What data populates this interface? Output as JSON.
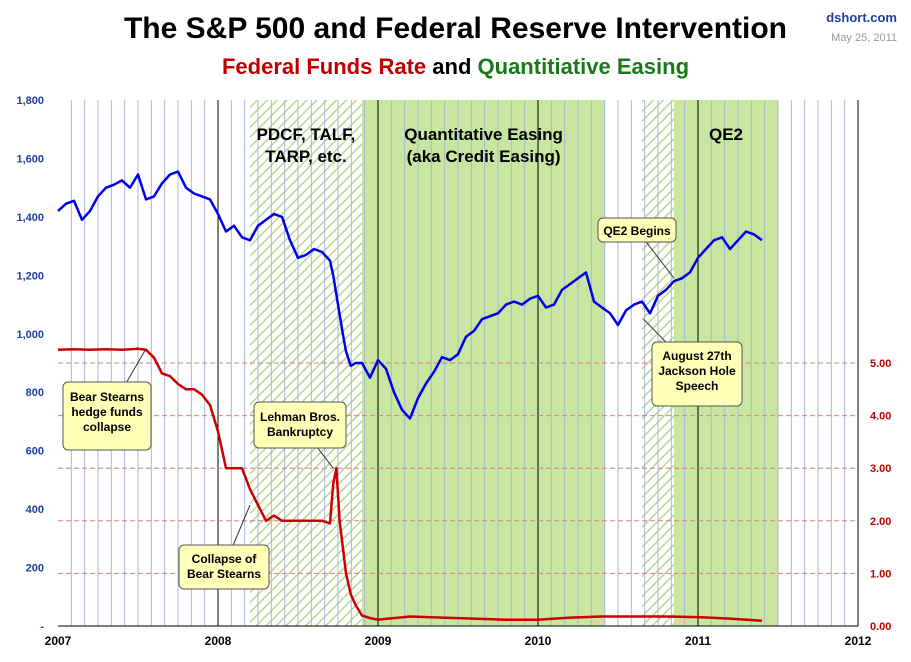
{
  "header": {
    "title": "The S&P 500 and Federal Reserve Intervention",
    "subtitle_part1": "Federal Funds Rate",
    "subtitle_part2": "and",
    "subtitle_part3": "Quantitiative Easing",
    "source": "dshort.com",
    "date": "May 25, 2011"
  },
  "colors": {
    "sp500_line": "#0000ee",
    "fed_funds_line": "#cc0000",
    "qe_fill": "#c8e6a0",
    "facility_hatch": "#b8d890",
    "left_axis_text": "#1f3f9f",
    "right_axis_text": "#c00000",
    "callout_fill": "#ffffb8"
  },
  "chart_data": {
    "type": "line",
    "x_axis": {
      "range": [
        2007.0,
        2012.0
      ],
      "tick_labels": [
        "2007",
        "2008",
        "2009",
        "2010",
        "2011",
        "2012"
      ]
    },
    "y_left": {
      "range": [
        0,
        1800
      ],
      "tick_labels": [
        "-",
        "200",
        "400",
        "600",
        "800",
        "1,000",
        "1,200",
        "1,400",
        "1,600",
        "1,800"
      ]
    },
    "y_right": {
      "range": [
        0,
        10
      ],
      "tick_labels": [
        "0.00",
        "1.00",
        "2.00",
        "3.00",
        "4.00",
        "5.00"
      ]
    },
    "grid": "vertical monthly gridlines; dashed horizontal lines on right-axis ticks",
    "shaded_periods": [
      {
        "label": "PDCF, TALF,\nTARP, etc.",
        "start": 2008.2,
        "end": 2008.9,
        "style": "hatched"
      },
      {
        "label": "Quantitative  Easing\n(aka Credit Easing)",
        "start": 2008.9,
        "end": 2010.42,
        "style": "solid"
      },
      {
        "label": "",
        "start": 2010.65,
        "end": 2010.85,
        "style": "hatched"
      },
      {
        "label": "QE2",
        "start": 2010.85,
        "end": 2011.5,
        "style": "solid"
      }
    ],
    "series": [
      {
        "axis": "left",
        "x": [
          2007.0,
          2007.05,
          2007.1,
          2007.15,
          2007.2,
          2007.25,
          2007.3,
          2007.35,
          2007.4,
          2007.45,
          2007.5,
          2007.55,
          2007.6,
          2007.65,
          2007.7,
          2007.75,
          2007.8,
          2007.85,
          2007.9,
          2007.95,
          2008.0,
          2008.05,
          2008.1,
          2008.15,
          2008.2,
          2008.25,
          2008.3,
          2008.35,
          2008.4,
          2008.45,
          2008.5,
          2008.55,
          2008.6,
          2008.65,
          2008.7,
          2008.72,
          2008.75,
          2008.78,
          2008.8,
          2008.83,
          2008.86,
          2008.9,
          2008.95,
          2009.0,
          2009.05,
          2009.1,
          2009.15,
          2009.2,
          2009.25,
          2009.3,
          2009.35,
          2009.4,
          2009.45,
          2009.5,
          2009.55,
          2009.6,
          2009.65,
          2009.7,
          2009.75,
          2009.8,
          2009.85,
          2009.9,
          2009.95,
          2010.0,
          2010.05,
          2010.1,
          2010.15,
          2010.2,
          2010.25,
          2010.3,
          2010.35,
          2010.4,
          2010.45,
          2010.5,
          2010.55,
          2010.6,
          2010.65,
          2010.7,
          2010.75,
          2010.8,
          2010.85,
          2010.9,
          2010.95,
          2011.0,
          2011.05,
          2011.1,
          2011.15,
          2011.2,
          2011.25,
          2011.3,
          2011.35,
          2011.4
        ],
        "values": [
          1420,
          1445,
          1455,
          1390,
          1420,
          1470,
          1500,
          1510,
          1525,
          1500,
          1545,
          1460,
          1470,
          1515,
          1545,
          1555,
          1500,
          1480,
          1470,
          1460,
          1410,
          1350,
          1370,
          1330,
          1320,
          1370,
          1390,
          1410,
          1400,
          1320,
          1260,
          1270,
          1290,
          1280,
          1250,
          1200,
          1100,
          1000,
          940,
          890,
          900,
          900,
          850,
          910,
          880,
          800,
          740,
          710,
          780,
          830,
          870,
          920,
          910,
          930,
          990,
          1010,
          1050,
          1060,
          1070,
          1100,
          1110,
          1100,
          1120,
          1130,
          1090,
          1100,
          1150,
          1170,
          1190,
          1210,
          1110,
          1090,
          1070,
          1030,
          1080,
          1100,
          1110,
          1070,
          1130,
          1150,
          1180,
          1190,
          1210,
          1260,
          1290,
          1320,
          1330,
          1290,
          1320,
          1350,
          1340,
          1320
        ]
      },
      {
        "axis": "right",
        "x": [
          2007.0,
          2007.1,
          2007.2,
          2007.3,
          2007.4,
          2007.5,
          2007.55,
          2007.6,
          2007.65,
          2007.7,
          2007.75,
          2007.8,
          2007.85,
          2007.9,
          2007.95,
          2008.0,
          2008.05,
          2008.1,
          2008.15,
          2008.2,
          2008.25,
          2008.3,
          2008.35,
          2008.4,
          2008.45,
          2008.5,
          2008.55,
          2008.6,
          2008.65,
          2008.7,
          2008.72,
          2008.74,
          2008.76,
          2008.78,
          2008.8,
          2008.83,
          2008.86,
          2008.9,
          2008.95,
          2009.0,
          2009.2,
          2009.4,
          2009.6,
          2009.8,
          2010.0,
          2010.2,
          2010.4,
          2010.6,
          2010.8,
          2011.0,
          2011.2,
          2011.4
        ],
        "values": [
          5.25,
          5.26,
          5.25,
          5.26,
          5.25,
          5.27,
          5.25,
          5.1,
          4.8,
          4.75,
          4.6,
          4.5,
          4.5,
          4.4,
          4.2,
          3.7,
          3.0,
          3.0,
          3.0,
          2.6,
          2.3,
          2.0,
          2.1,
          2.0,
          2.0,
          2.0,
          2.0,
          2.0,
          2.0,
          1.95,
          2.7,
          3.0,
          2.0,
          1.5,
          1.0,
          0.6,
          0.4,
          0.2,
          0.15,
          0.12,
          0.18,
          0.16,
          0.14,
          0.12,
          0.12,
          0.16,
          0.18,
          0.18,
          0.18,
          0.17,
          0.14,
          0.1
        ]
      }
    ],
    "annotations": [
      {
        "text": "QE2 Begins",
        "x": 2010.85,
        "y_left": 1190
      },
      {
        "text": "August 27th\nJackson Hole\nSpeech",
        "x": 2010.66,
        "y_left": 1050
      },
      {
        "text": "Bear Stearns\nhedge funds\ncollapse",
        "x": 2007.55,
        "y_right": 5.27
      },
      {
        "text": "Lehman Bros.\nBankruptcy",
        "x": 2008.72,
        "y_right": 3.0
      },
      {
        "text": "Collapse of\nBear Stearns",
        "x": 2008.2,
        "y_right": 2.3
      }
    ]
  }
}
